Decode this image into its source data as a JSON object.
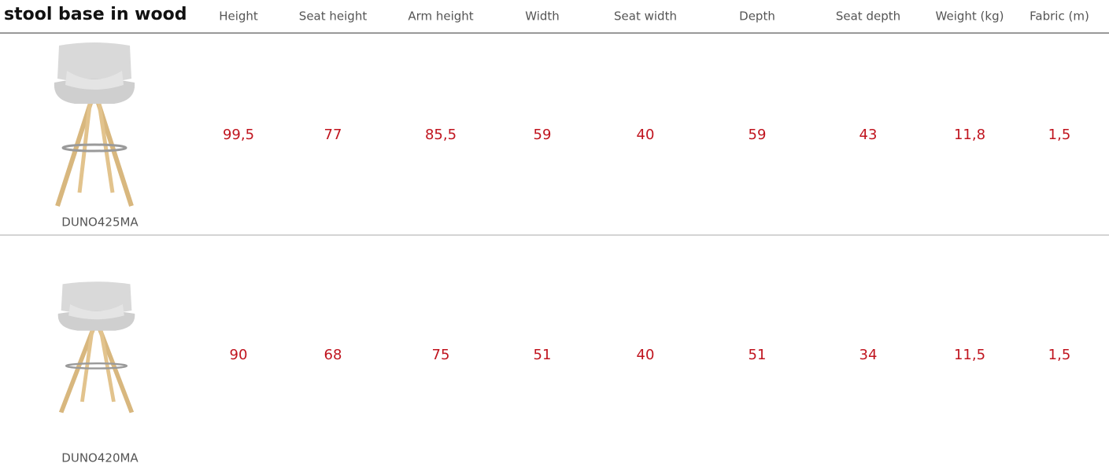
{
  "header": {
    "title": "stool base in wood",
    "columns": [
      "Height",
      "Seat height",
      "Arm height",
      "Width",
      "Seat width",
      "Depth",
      "Seat depth",
      "Weight (kg)",
      "Fabric (m)"
    ]
  },
  "table": {
    "rows": [
      {
        "code": "DUNO425MA",
        "values": [
          "99,5",
          "77",
          "85,5",
          "59",
          "40",
          "59",
          "43",
          "11,8",
          "1,5"
        ]
      },
      {
        "code": "DUNO420MA",
        "values": [
          "90",
          "68",
          "75",
          "51",
          "40",
          "51",
          "34",
          "11,5",
          "1,5"
        ]
      }
    ]
  }
}
